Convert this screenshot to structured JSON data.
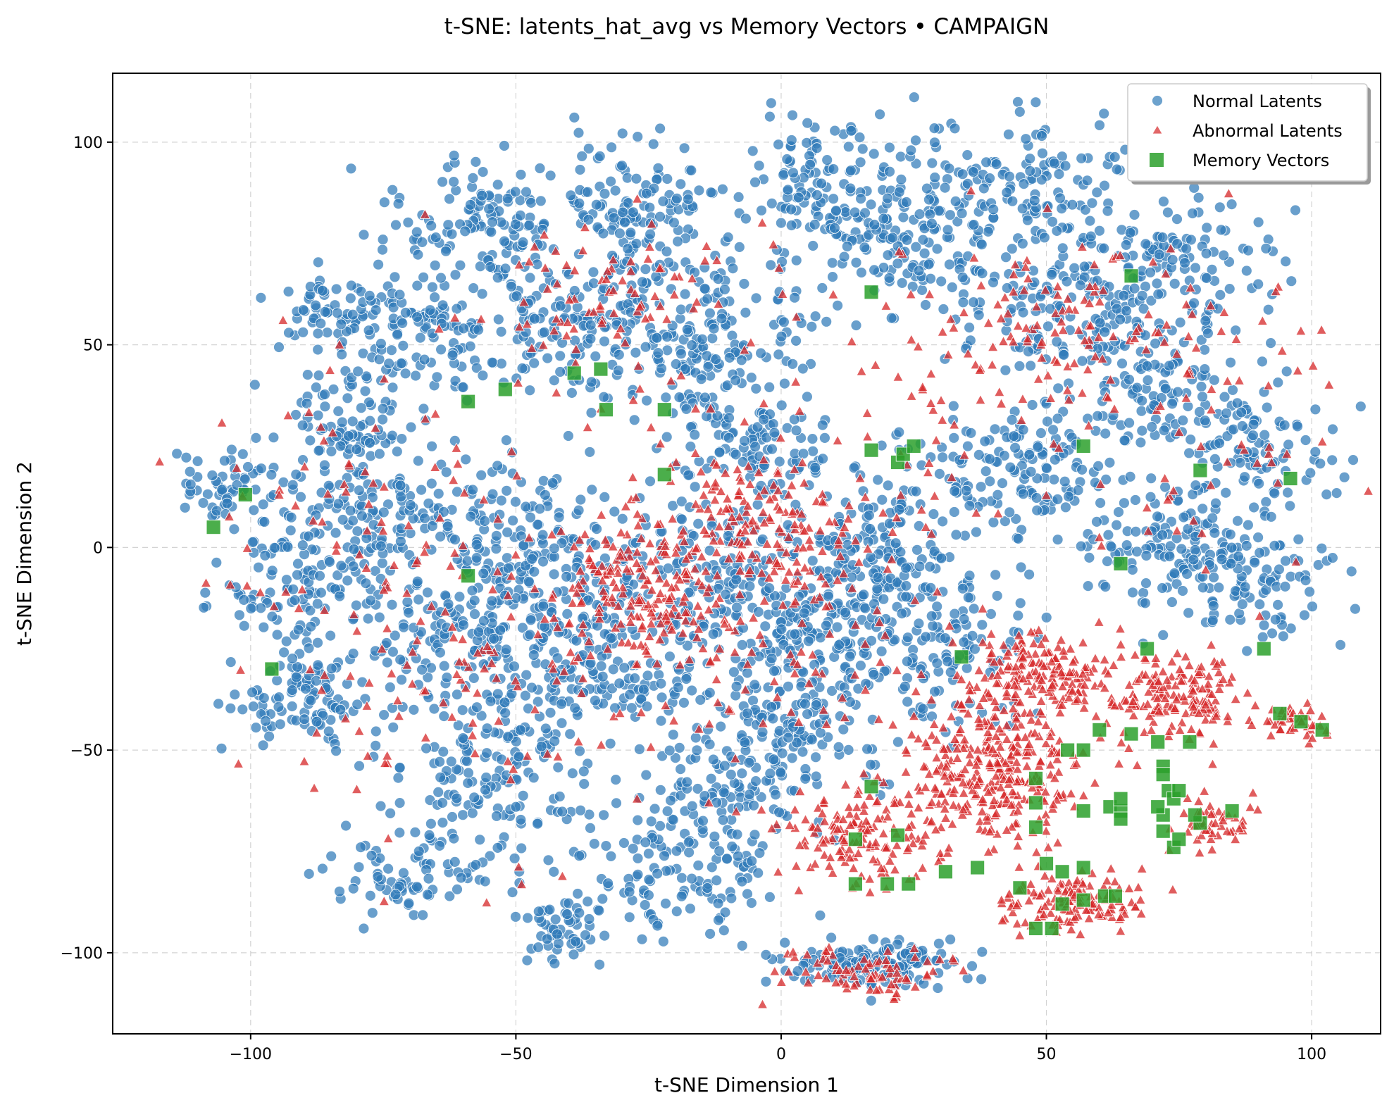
{
  "chart_data": {
    "type": "scatter",
    "title": "t-SNE: latents_hat_avg vs Memory Vectors • CAMPAIGN",
    "xlabel": "t-SNE Dimension 1",
    "ylabel": "t-SNE Dimension 2",
    "xlim": [
      -126,
      113
    ],
    "ylim": [
      -120,
      117
    ],
    "xticks": [
      -100,
      -50,
      0,
      50,
      100
    ],
    "yticks": [
      -100,
      -50,
      0,
      50,
      100
    ],
    "xtick_labels": [
      "−100",
      "−50",
      "0",
      "50",
      "100"
    ],
    "ytick_labels": [
      "−100",
      "−50",
      "0",
      "50",
      "100"
    ],
    "grid": true,
    "legend_position": "top-right",
    "colors": {
      "normal": "#2f7ab8",
      "abnormal": "#d62728",
      "memory": "#2ca02c"
    },
    "series": [
      {
        "name": "Normal Latents",
        "marker": "circle",
        "clusters": [
          {
            "cx": -105,
            "cy": 15,
            "sx": 6,
            "sy": 5,
            "n": 60
          },
          {
            "cx": -85,
            "cy": 58,
            "sx": 5,
            "sy": 4,
            "n": 50
          },
          {
            "cx": -82,
            "cy": 32,
            "sx": 7,
            "sy": 6,
            "n": 80
          },
          {
            "cx": -70,
            "cy": 55,
            "sx": 8,
            "sy": 8,
            "n": 120
          },
          {
            "cx": -55,
            "cy": 80,
            "sx": 10,
            "sy": 8,
            "n": 130
          },
          {
            "cx": -40,
            "cy": 55,
            "sx": 9,
            "sy": 9,
            "n": 140
          },
          {
            "cx": -25,
            "cy": 80,
            "sx": 10,
            "sy": 10,
            "n": 150
          },
          {
            "cx": -15,
            "cy": 50,
            "sx": 10,
            "sy": 10,
            "n": 160
          },
          {
            "cx": -5,
            "cy": 25,
            "sx": 9,
            "sy": 8,
            "n": 120
          },
          {
            "cx": 10,
            "cy": 90,
            "sx": 9,
            "sy": 8,
            "n": 120
          },
          {
            "cx": 25,
            "cy": 75,
            "sx": 10,
            "sy": 10,
            "n": 140
          },
          {
            "cx": 45,
            "cy": 90,
            "sx": 10,
            "sy": 8,
            "n": 120
          },
          {
            "cx": 55,
            "cy": 60,
            "sx": 12,
            "sy": 10,
            "n": 160
          },
          {
            "cx": 75,
            "cy": 70,
            "sx": 9,
            "sy": 8,
            "n": 110
          },
          {
            "cx": 70,
            "cy": 40,
            "sx": 9,
            "sy": 8,
            "n": 110
          },
          {
            "cx": 90,
            "cy": 25,
            "sx": 8,
            "sy": 8,
            "n": 100
          },
          {
            "cx": 45,
            "cy": 20,
            "sx": 10,
            "sy": 8,
            "n": 140
          },
          {
            "cx": 75,
            "cy": 0,
            "sx": 10,
            "sy": 7,
            "n": 140
          },
          {
            "cx": 90,
            "cy": -10,
            "sx": 8,
            "sy": 7,
            "n": 90
          },
          {
            "cx": -90,
            "cy": -10,
            "sx": 8,
            "sy": 8,
            "n": 110
          },
          {
            "cx": -90,
            "cy": -38,
            "sx": 7,
            "sy": 7,
            "n": 100
          },
          {
            "cx": -75,
            "cy": 10,
            "sx": 9,
            "sy": 9,
            "n": 140
          },
          {
            "cx": -60,
            "cy": -20,
            "sx": 11,
            "sy": 10,
            "n": 180
          },
          {
            "cx": -45,
            "cy": 0,
            "sx": 10,
            "sy": 10,
            "n": 170
          },
          {
            "cx": -55,
            "cy": -55,
            "sx": 10,
            "sy": 10,
            "n": 160
          },
          {
            "cx": -30,
            "cy": -30,
            "sx": 10,
            "sy": 10,
            "n": 170
          },
          {
            "cx": -15,
            "cy": -5,
            "sx": 9,
            "sy": 9,
            "n": 130
          },
          {
            "cx": 5,
            "cy": -20,
            "sx": 10,
            "sy": 10,
            "n": 170
          },
          {
            "cx": 20,
            "cy": 0,
            "sx": 10,
            "sy": 10,
            "n": 160
          },
          {
            "cx": 30,
            "cy": -25,
            "sx": 9,
            "sy": 9,
            "n": 130
          },
          {
            "cx": 0,
            "cy": -45,
            "sx": 9,
            "sy": 8,
            "n": 120
          },
          {
            "cx": -20,
            "cy": -80,
            "sx": 10,
            "sy": 8,
            "n": 130
          },
          {
            "cx": -40,
            "cy": -95,
            "sx": 5,
            "sy": 4,
            "n": 50
          },
          {
            "cx": -70,
            "cy": -80,
            "sx": 7,
            "sy": 6,
            "n": 80
          },
          {
            "cx": 17,
            "cy": -103,
            "sx": 9,
            "sy": 3,
            "n": 140
          },
          {
            "cx": -10,
            "cy": -60,
            "sx": 8,
            "sy": 6,
            "n": 90
          }
        ]
      },
      {
        "name": "Abnormal Latents",
        "marker": "triangle",
        "clusters": [
          {
            "cx": 40,
            "cy": -55,
            "sx": 8,
            "sy": 9,
            "n": 330
          },
          {
            "cx": 50,
            "cy": -30,
            "sx": 6,
            "sy": 5,
            "n": 160
          },
          {
            "cx": 75,
            "cy": -37,
            "sx": 6,
            "sy": 5,
            "n": 160
          },
          {
            "cx": 55,
            "cy": -88,
            "sx": 7,
            "sy": 4,
            "n": 140
          },
          {
            "cx": 15,
            "cy": -72,
            "sx": 8,
            "sy": 6,
            "n": 150
          },
          {
            "cx": 82,
            "cy": -69,
            "sx": 3,
            "sy": 3,
            "n": 50
          },
          {
            "cx": 97,
            "cy": -43,
            "sx": 3,
            "sy": 2,
            "n": 40
          },
          {
            "cx": -25,
            "cy": -10,
            "sx": 9,
            "sy": 9,
            "n": 160
          },
          {
            "cx": -5,
            "cy": 5,
            "sx": 10,
            "sy": 9,
            "n": 150
          },
          {
            "cx": 15,
            "cy": -105,
            "sx": 8,
            "sy": 3,
            "n": 80
          },
          {
            "cx": 55,
            "cy": 55,
            "sx": 12,
            "sy": 10,
            "n": 80
          },
          {
            "cx": -30,
            "cy": 60,
            "sx": 12,
            "sy": 12,
            "n": 90
          },
          {
            "cx": -60,
            "cy": -30,
            "sx": 18,
            "sy": 20,
            "n": 110
          },
          {
            "cx": 0,
            "cy": -20,
            "sx": 20,
            "sy": 20,
            "n": 120
          },
          {
            "cx": 30,
            "cy": 40,
            "sx": 18,
            "sy": 20,
            "n": 80
          },
          {
            "cx": -80,
            "cy": 10,
            "sx": 15,
            "sy": 25,
            "n": 70
          },
          {
            "cx": 80,
            "cy": 30,
            "sx": 15,
            "sy": 20,
            "n": 60
          }
        ]
      },
      {
        "name": "Memory Vectors",
        "marker": "square",
        "points": [
          [
            -107,
            5
          ],
          [
            -101,
            13
          ],
          [
            -96,
            -30
          ],
          [
            -59,
            36
          ],
          [
            -59,
            -7
          ],
          [
            -52,
            39
          ],
          [
            -39,
            43
          ],
          [
            -34,
            44
          ],
          [
            -33,
            34
          ],
          [
            -22,
            34
          ],
          [
            -22,
            18
          ],
          [
            17,
            63
          ],
          [
            17,
            24
          ],
          [
            22,
            21
          ],
          [
            23,
            23
          ],
          [
            25,
            25
          ],
          [
            34,
            -27
          ],
          [
            57,
            25
          ],
          [
            64,
            -4
          ],
          [
            66,
            67
          ],
          [
            79,
            19
          ],
          [
            91,
            -25
          ],
          [
            96,
            17
          ],
          [
            94,
            -41
          ],
          [
            98,
            -43
          ],
          [
            102,
            -45
          ],
          [
            17,
            -59
          ],
          [
            14,
            -72
          ],
          [
            22,
            -71
          ],
          [
            14,
            -83
          ],
          [
            20,
            -83
          ],
          [
            24,
            -83
          ],
          [
            31,
            -80
          ],
          [
            37,
            -79
          ],
          [
            45,
            -84
          ],
          [
            48,
            -69
          ],
          [
            48,
            -63
          ],
          [
            48,
            -57
          ],
          [
            50,
            -78
          ],
          [
            53,
            -80
          ],
          [
            53,
            -88
          ],
          [
            48,
            -94
          ],
          [
            51,
            -94
          ],
          [
            54,
            -50
          ],
          [
            57,
            -50
          ],
          [
            57,
            -65
          ],
          [
            57,
            -79
          ],
          [
            57,
            -87
          ],
          [
            61,
            -86
          ],
          [
            62,
            -64
          ],
          [
            64,
            -65
          ],
          [
            64,
            -62
          ],
          [
            64,
            -67
          ],
          [
            60,
            -45
          ],
          [
            66,
            -46
          ],
          [
            69,
            -25
          ],
          [
            71,
            -48
          ],
          [
            72,
            -54
          ],
          [
            72,
            -56
          ],
          [
            73,
            -60
          ],
          [
            74,
            -62
          ],
          [
            72,
            -66
          ],
          [
            72,
            -70
          ],
          [
            74,
            -74
          ],
          [
            75,
            -60
          ],
          [
            75,
            -72
          ],
          [
            77,
            -48
          ],
          [
            79,
            -68
          ],
          [
            85,
            -65
          ],
          [
            63,
            -86
          ],
          [
            71,
            -64
          ],
          [
            78,
            -66
          ]
        ]
      }
    ]
  }
}
